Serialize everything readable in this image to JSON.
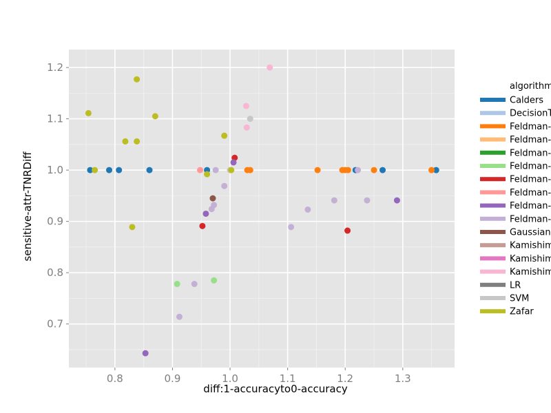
{
  "chart_data": {
    "type": "scatter",
    "xlabel": "diff:1-accuracyto0-accuracy",
    "ylabel": "sensitive-attr-TNRDiff",
    "xlim": [
      0.72,
      1.39
    ],
    "ylim": [
      0.615,
      1.235
    ],
    "x_ticks": [
      0.8,
      0.9,
      1.0,
      1.1,
      1.2,
      1.3
    ],
    "x_tick_labels": [
      "0.8",
      "0.9",
      "1.0",
      "1.1",
      "1.2",
      "1.3"
    ],
    "y_ticks": [
      0.7,
      0.8,
      0.9,
      1.0,
      1.1,
      1.2
    ],
    "y_tick_labels": [
      "0.7",
      "0.8",
      "0.9",
      "1.0",
      "1.1",
      "1.2"
    ],
    "grid": true,
    "legend": {
      "title": "algorithm",
      "placement": "right",
      "entries": [
        {
          "label": "Calders",
          "color": "#1f77b4"
        },
        {
          "label": "DecisionTree",
          "color": "#aec7e8"
        },
        {
          "label": "Feldman-DecisionTree",
          "color": "#ff7f0e"
        },
        {
          "label": "Feldman-GaussianNB",
          "color": "#ffbb78"
        },
        {
          "label": "Feldman-LR",
          "color": "#2ca02c"
        },
        {
          "label": "Feldman-SVM",
          "color": "#98df8a"
        },
        {
          "label": "Feldman-DecisionTree",
          "color": "#d62728"
        },
        {
          "label": "Feldman-GaussianNB",
          "color": "#ff9896"
        },
        {
          "label": "Feldman-LR",
          "color": "#9467bd"
        },
        {
          "label": "Feldman-SVM",
          "color": "#c5b0d5"
        },
        {
          "label": "GaussianNB",
          "color": "#8c564b"
        },
        {
          "label": "Kamishima",
          "color": "#c49c94"
        },
        {
          "label": "Kamishima-accuracy",
          "color": "#e377c2"
        },
        {
          "label": "Kamishima-DIavgall",
          "color": "#f7b6d2"
        },
        {
          "label": "LR",
          "color": "#7f7f7f"
        },
        {
          "label": "SVM",
          "color": "#c7c7c7"
        },
        {
          "label": "Zafar",
          "color": "#bcbd22"
        }
      ]
    },
    "series": [
      {
        "name": "Calders",
        "color": "#1f77b4",
        "points": [
          [
            0.757,
            1.0
          ],
          [
            0.79,
            1.0
          ],
          [
            0.807,
            1.0
          ],
          [
            0.86,
            1.0
          ],
          [
            0.96,
            1.0
          ],
          [
            1.218,
            1.0
          ],
          [
            1.265,
            1.0
          ],
          [
            1.358,
            1.0
          ]
        ]
      },
      {
        "name": "Feldman-DecisionTree",
        "color": "#ff7f0e",
        "points": [
          [
            1.03,
            1.0
          ],
          [
            1.035,
            1.0
          ],
          [
            1.152,
            1.0
          ],
          [
            1.195,
            1.0
          ],
          [
            1.2,
            1.0
          ],
          [
            1.205,
            1.0
          ],
          [
            1.25,
            1.0
          ],
          [
            1.35,
            1.0
          ]
        ]
      },
      {
        "name": "Feldman-SVM",
        "color": "#98df8a",
        "points": [
          [
            0.908,
            0.778
          ],
          [
            0.972,
            0.785
          ]
        ]
      },
      {
        "name": "Feldman-DecisionTree",
        "color": "#d62728",
        "points": [
          [
            1.008,
            1.024
          ],
          [
            0.952,
            0.891
          ],
          [
            1.204,
            0.882
          ]
        ]
      },
      {
        "name": "Feldman-GaussianNB",
        "color": "#ff9896",
        "points": [
          [
            0.948,
            1.0
          ]
        ]
      },
      {
        "name": "Feldman-LR",
        "color": "#9467bd",
        "points": [
          [
            1.006,
            1.015
          ],
          [
            0.958,
            0.915
          ],
          [
            0.853,
            0.643
          ],
          [
            1.29,
            0.941
          ]
        ]
      },
      {
        "name": "Feldman-SVM",
        "color": "#c5b0d5",
        "points": [
          [
            0.99,
            0.969
          ],
          [
            0.972,
            0.932
          ],
          [
            0.968,
            0.924
          ],
          [
            0.912,
            0.714
          ],
          [
            0.938,
            0.778
          ],
          [
            1.106,
            0.889
          ],
          [
            1.135,
            0.923
          ],
          [
            1.181,
            0.941
          ],
          [
            1.222,
            1.0
          ],
          [
            1.238,
            0.941
          ],
          [
            0.975,
            1.0
          ]
        ]
      },
      {
        "name": "GaussianNB",
        "color": "#8c564b",
        "points": [
          [
            0.97,
            0.945
          ]
        ]
      },
      {
        "name": "Kamishima-DIavgall",
        "color": "#f7b6d2",
        "points": [
          [
            1.069,
            1.2
          ],
          [
            1.028,
            1.125
          ],
          [
            1.029,
            1.083
          ]
        ]
      },
      {
        "name": "SVM",
        "color": "#c7c7c7",
        "points": [
          [
            1.035,
            1.1
          ],
          [
            1.0,
            1.0
          ]
        ]
      },
      {
        "name": "Zafar",
        "color": "#bcbd22",
        "points": [
          [
            0.754,
            1.111
          ],
          [
            0.838,
            1.177
          ],
          [
            0.87,
            1.105
          ],
          [
            0.818,
            1.056
          ],
          [
            0.838,
            1.056
          ],
          [
            0.765,
            1.0
          ],
          [
            0.99,
            1.067
          ],
          [
            0.96,
            0.992
          ],
          [
            1.002,
            1.0
          ],
          [
            0.83,
            0.889
          ]
        ]
      }
    ]
  }
}
